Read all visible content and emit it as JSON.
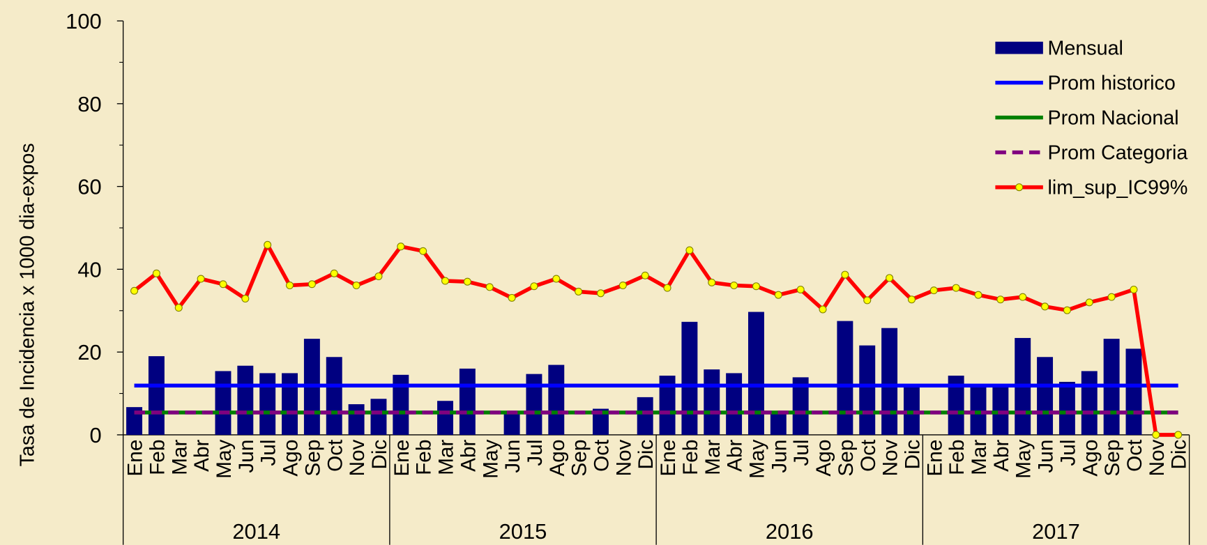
{
  "chart_data": {
    "type": "bar-line",
    "y_label": "Tasa de Incidencia x 1000 dia-expos",
    "categories": [
      "Ene",
      "Feb",
      "Mar",
      "Abr",
      "May",
      "Jun",
      "Jul",
      "Ago",
      "Sep",
      "Oct",
      "Nov",
      "Dic",
      "Ene",
      "Feb",
      "Mar",
      "Abr",
      "May",
      "Jun",
      "Jul",
      "Ago",
      "Sep",
      "Oct",
      "Nov",
      "Dic",
      "Ene",
      "Feb",
      "Mar",
      "Abr",
      "May",
      "Jun",
      "Jul",
      "Ago",
      "Sep",
      "Oct",
      "Nov",
      "Dic",
      "Ene",
      "Feb",
      "Mar",
      "Abr",
      "May",
      "Jun",
      "Jul",
      "Ago",
      "Sep",
      "Oct",
      "Nov",
      "Dic"
    ],
    "years": [
      "2014",
      "2015",
      "2016",
      "2017"
    ],
    "ylim": [
      0,
      100
    ],
    "yticks": [
      0,
      20,
      40,
      60,
      80,
      100
    ],
    "series": [
      {
        "name": "Mensual",
        "kind": "bar",
        "color": "#000080",
        "values": [
          6.7,
          19,
          0,
          0,
          15.4,
          16.7,
          14.9,
          14.9,
          23.2,
          18.8,
          7.4,
          8.7,
          14.5,
          0,
          8.2,
          16,
          0,
          5.6,
          14.7,
          16.9,
          0,
          6.3,
          0,
          9.1,
          14.3,
          27.3,
          15.8,
          14.9,
          29.7,
          5.6,
          13.9,
          0,
          27.5,
          21.6,
          25.8,
          11.9,
          0,
          14.3,
          11.9,
          11.9,
          23.4,
          18.8,
          12.8,
          15.4,
          23.2,
          20.8,
          0,
          0
        ]
      },
      {
        "name": "Prom historico",
        "kind": "line",
        "color": "#0000ff",
        "values": [
          11.9,
          11.9,
          11.9,
          11.9,
          11.9,
          11.9,
          11.9,
          11.9,
          11.9,
          11.9,
          11.9,
          11.9,
          11.9,
          11.9,
          11.9,
          11.9,
          11.9,
          11.9,
          11.9,
          11.9,
          11.9,
          11.9,
          11.9,
          11.9,
          11.9,
          11.9,
          11.9,
          11.9,
          11.9,
          11.9,
          11.9,
          11.9,
          11.9,
          11.9,
          11.9,
          11.9,
          11.9,
          11.9,
          11.9,
          11.9,
          11.9,
          11.9,
          11.9,
          11.9,
          11.9,
          11.9,
          11.9,
          11.9
        ]
      },
      {
        "name": "Prom Nacional",
        "kind": "line",
        "color": "#008000",
        "values": [
          5.4,
          5.4,
          5.4,
          5.4,
          5.4,
          5.4,
          5.4,
          5.4,
          5.4,
          5.4,
          5.4,
          5.4,
          5.4,
          5.4,
          5.4,
          5.4,
          5.4,
          5.4,
          5.4,
          5.4,
          5.4,
          5.4,
          5.4,
          5.4,
          5.4,
          5.4,
          5.4,
          5.4,
          5.4,
          5.4,
          5.4,
          5.4,
          5.4,
          5.4,
          5.4,
          5.4,
          5.4,
          5.4,
          5.4,
          5.4,
          5.4,
          5.4,
          5.4,
          5.4,
          5.4,
          5.4,
          5.4,
          5.4
        ]
      },
      {
        "name": "Prom Categoria",
        "kind": "line",
        "color": "#800080",
        "dashed": true,
        "values": [
          5.4,
          5.4,
          5.4,
          5.4,
          5.4,
          5.4,
          5.4,
          5.4,
          5.4,
          5.4,
          5.4,
          5.4,
          5.4,
          5.4,
          5.4,
          5.4,
          5.4,
          5.4,
          5.4,
          5.4,
          5.4,
          5.4,
          5.4,
          5.4,
          5.4,
          5.4,
          5.4,
          5.4,
          5.4,
          5.4,
          5.4,
          5.4,
          5.4,
          5.4,
          5.4,
          5.4,
          5.4,
          5.4,
          5.4,
          5.4,
          5.4,
          5.4,
          5.4,
          5.4,
          5.4,
          5.4,
          5.4,
          5.4
        ]
      },
      {
        "name": "lim_sup_IC99%",
        "kind": "line",
        "color": "#ff0000",
        "marker_color": "#ffff00",
        "values": [
          34.8,
          39,
          30.7,
          37.7,
          36.4,
          32.9,
          45.9,
          36.1,
          36.4,
          39,
          36.1,
          38.3,
          45.5,
          44.4,
          37.2,
          37,
          35.7,
          33.1,
          35.9,
          37.7,
          34.6,
          34.2,
          36.1,
          38.5,
          35.5,
          44.6,
          36.8,
          36.1,
          35.9,
          33.8,
          35.1,
          30.3,
          38.7,
          32.5,
          37.9,
          32.7,
          34.9,
          35.5,
          33.8,
          32.7,
          33.3,
          31,
          30.1,
          32,
          33.3,
          35.1,
          0,
          0
        ]
      }
    ]
  }
}
